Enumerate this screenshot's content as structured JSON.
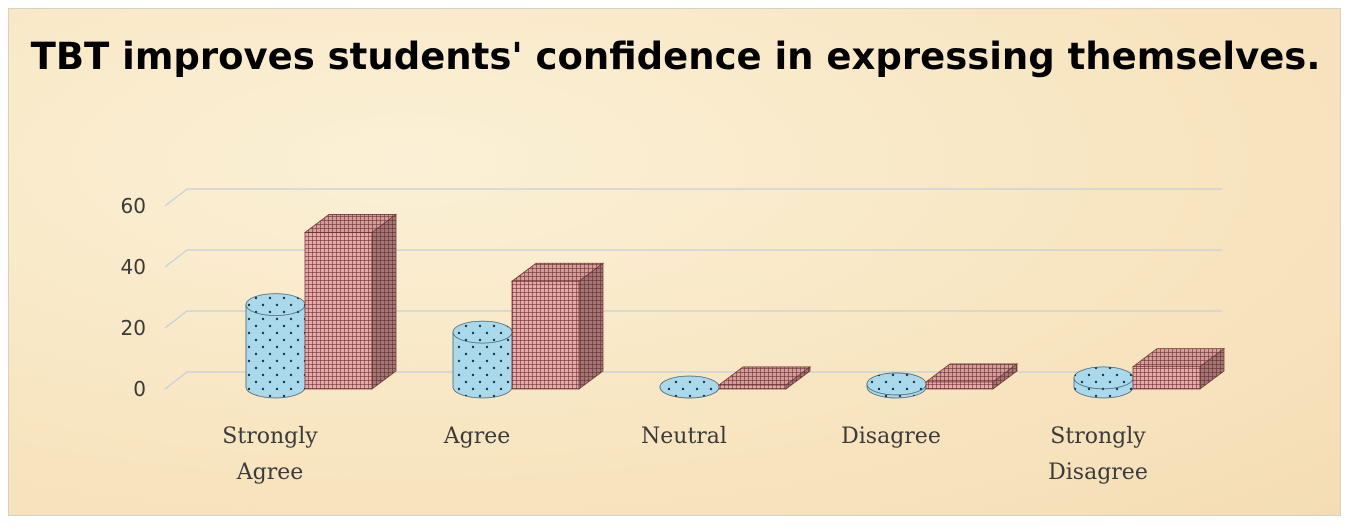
{
  "chart_data": {
    "type": "bar",
    "title": "TBT improves students' confidence in expressing themselves.",
    "categories": [
      "Strongly Agree",
      "Agree",
      "Neutral",
      "Disagree",
      "Strongly Disagree"
    ],
    "category_lines": [
      [
        "Strongly",
        "Agree"
      ],
      [
        "Agree"
      ],
      [
        "Neutral"
      ],
      [
        "Disagree"
      ],
      [
        "Strongly",
        "Disagree"
      ]
    ],
    "series": [
      {
        "shape": "cylinder",
        "color": "#a9d9ea",
        "pattern": "dots",
        "values": [
          27,
          18,
          0,
          1,
          3
        ]
      },
      {
        "shape": "box",
        "color": "#e9a9a9",
        "pattern": "grid",
        "values": [
          51,
          35,
          1,
          2,
          7
        ]
      }
    ],
    "yticks": [
      0,
      20,
      40,
      60
    ],
    "ylim": [
      0,
      60
    ],
    "grid": true,
    "legend": "none",
    "xlabel": "",
    "ylabel": ""
  }
}
